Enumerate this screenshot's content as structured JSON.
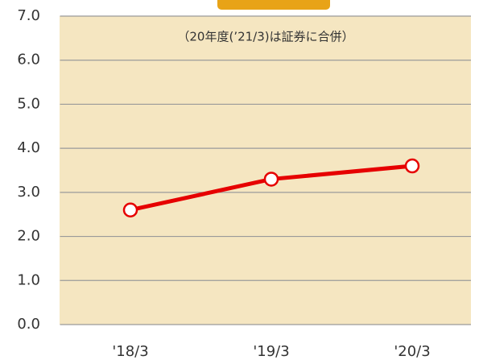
{
  "chart_data": {
    "type": "line",
    "annotation": "（20年度(’21/3)は証券に合併）",
    "categories": [
      "'18/3",
      "'19/3",
      "'20/3"
    ],
    "series": [
      {
        "color": "#e60000",
        "values": [
          2.6,
          3.3,
          3.6
        ]
      }
    ],
    "ylim": [
      0,
      7
    ],
    "yticks": [
      {
        "value": 0,
        "label": "0.0"
      },
      {
        "value": 1,
        "label": "1.0"
      },
      {
        "value": 2,
        "label": "2.0"
      },
      {
        "value": 3,
        "label": "3.0"
      },
      {
        "value": 4,
        "label": "4.0"
      },
      {
        "value": 5,
        "label": "5.0"
      },
      {
        "value": 6,
        "label": "6.0"
      },
      {
        "value": 7,
        "label": "7.0"
      }
    ],
    "grid": true
  }
}
